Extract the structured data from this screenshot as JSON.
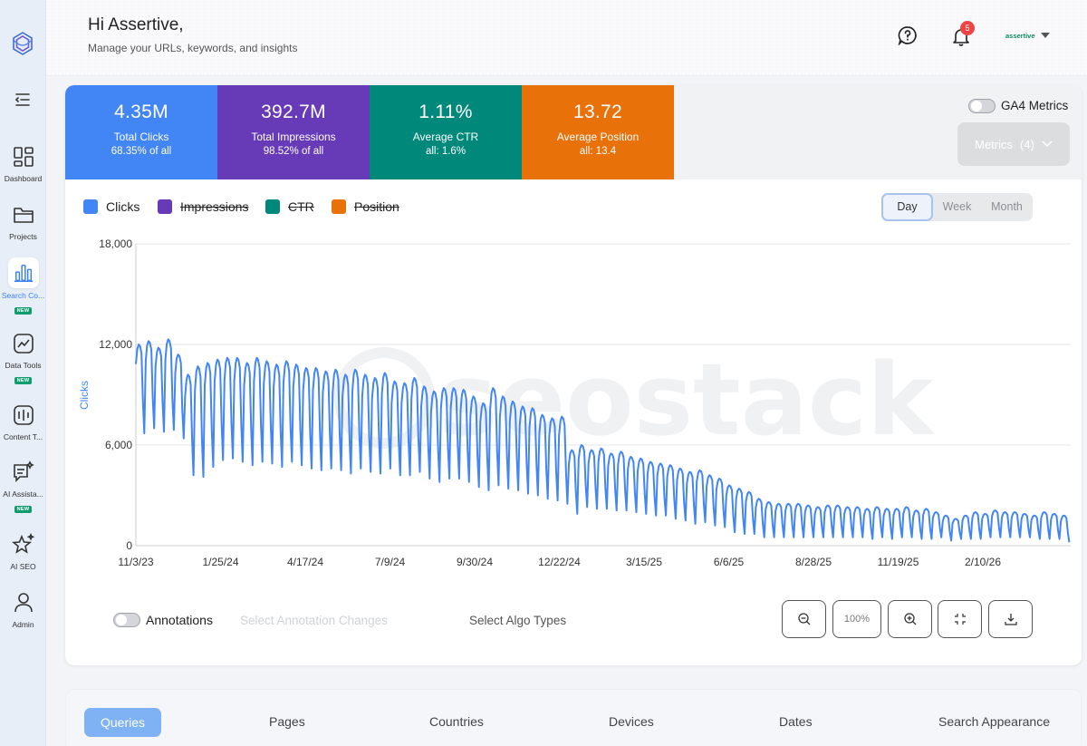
{
  "header": {
    "greeting": "Hi Assertive,",
    "subtitle": "Manage your URLs, keywords, and insights",
    "notification_count": "5",
    "username": "assertive"
  },
  "sidebar": {
    "items": [
      {
        "label": "Dashboard",
        "icon": "dashboard-icon",
        "new": false
      },
      {
        "label": "Projects",
        "icon": "folder-icon",
        "new": false
      },
      {
        "label": "Search Co...",
        "icon": "bar-chart-icon",
        "new": true,
        "active": true
      },
      {
        "label": "Data Tools",
        "icon": "trend-icon",
        "new": true
      },
      {
        "label": "Content T...",
        "icon": "content-icon",
        "new": false
      },
      {
        "label": "AI Assista...",
        "icon": "ai-chat-icon",
        "new": true
      },
      {
        "label": "AI SEO",
        "icon": "ai-seo-icon",
        "new": false
      },
      {
        "label": "Admin",
        "icon": "user-icon",
        "new": false
      }
    ],
    "new_badge": "NEW"
  },
  "metrics": [
    {
      "value": "4.35M",
      "label": "Total Clicks",
      "sub": "68.35% of all",
      "color": "#4285f4"
    },
    {
      "value": "392.7M",
      "label": "Total Impressions",
      "sub": "98.52% of all",
      "color": "#673ab7"
    },
    {
      "value": "1.11%",
      "label": "Average CTR",
      "sub": "all: 1.6%",
      "color": "#00897b"
    },
    {
      "value": "13.72",
      "label": "Average Position",
      "sub": "all: 13.4",
      "color": "#e8710a"
    }
  ],
  "ga4": {
    "label": "GA4 Metrics",
    "enabled": false
  },
  "metrics_select": {
    "label": "Metrics",
    "count": "(4)"
  },
  "legend": [
    {
      "label": "Clicks",
      "color": "#4285f4",
      "enabled": true
    },
    {
      "label": "Impressions",
      "color": "#673ab7",
      "enabled": false
    },
    {
      "label": "CTR",
      "color": "#00897b",
      "enabled": false
    },
    {
      "label": "Position",
      "color": "#e8710a",
      "enabled": false
    }
  ],
  "period": {
    "options": [
      "Day",
      "Week",
      "Month"
    ],
    "selected": "Day"
  },
  "watermark": "seostack",
  "chart_data": {
    "type": "line",
    "ylabel": "Clicks",
    "xlabel": "",
    "ylim": [
      0,
      18000
    ],
    "y_ticks": [
      "0",
      "6,000",
      "12,000",
      "18,000"
    ],
    "x_ticks": [
      "11/3/23",
      "1/25/24",
      "4/17/24",
      "7/9/24",
      "9/30/24",
      "12/22/24",
      "3/15/25",
      "6/6/25",
      "8/28/25",
      "11/19/25",
      "2/10/26"
    ],
    "grid": true,
    "series": [
      {
        "name": "Clicks",
        "color": "#4285f4",
        "weekly_peaks": [
          12000,
          12200,
          11800,
          12300,
          11400,
          10200,
          10700,
          10900,
          11100,
          11200,
          11200,
          10900,
          11200,
          11000,
          10800,
          11000,
          10800,
          10600,
          10600,
          10400,
          10500,
          10200,
          10500,
          10200,
          10000,
          10300,
          9800,
          9700,
          10000,
          9500,
          9200,
          9400,
          9400,
          9300,
          8900,
          8500,
          9400,
          8900,
          8600,
          8300,
          8200,
          7800,
          7600,
          7700,
          5700,
          6000,
          5700,
          5800,
          5500,
          5600,
          5300,
          5200,
          5000,
          4900,
          4800,
          4600,
          4400,
          4500,
          4200,
          4000,
          3600,
          3400,
          3200,
          2800,
          2600,
          2500,
          2500,
          2500,
          2400,
          2300,
          2400,
          2400,
          2300,
          2300,
          2200,
          2300,
          2200,
          2200,
          2300,
          2100,
          2200,
          2000,
          1800,
          1600,
          1800,
          2000,
          1900,
          2100,
          2000,
          2000,
          1900,
          1800,
          2000,
          1900,
          1800
        ],
        "weekly_troughs": [
          6700,
          7000,
          6800,
          6900,
          6400,
          4200,
          4100,
          4700,
          5100,
          5200,
          5000,
          4800,
          5000,
          4900,
          4700,
          5000,
          4800,
          4600,
          4500,
          4600,
          4500,
          4300,
          4600,
          4400,
          4300,
          4600,
          4200,
          4200,
          4400,
          4000,
          3800,
          4000,
          4000,
          3800,
          3500,
          3300,
          3600,
          3400,
          3300,
          3100,
          3000,
          2800,
          2700,
          2500,
          1900,
          2300,
          2200,
          2200,
          2100,
          2100,
          2000,
          1900,
          1800,
          1800,
          1600,
          1500,
          1300,
          1400,
          1200,
          1100,
          800,
          700,
          700,
          500,
          500,
          500,
          500,
          500,
          500,
          500,
          500,
          500,
          500,
          500,
          400,
          500,
          400,
          500,
          500,
          400,
          400,
          500,
          300,
          400,
          400,
          400,
          500,
          500,
          500,
          500,
          500,
          400,
          400,
          400,
          200
        ]
      }
    ]
  },
  "controls": {
    "annotations_label": "Annotations",
    "annotation_changes_placeholder": "Select Annotation Changes",
    "algo_types_placeholder": "Select Algo Types",
    "zoom_level": "100%"
  },
  "tabs": [
    "Queries",
    "Pages",
    "Countries",
    "Devices",
    "Dates",
    "Search Appearance"
  ],
  "active_tab": "Queries"
}
